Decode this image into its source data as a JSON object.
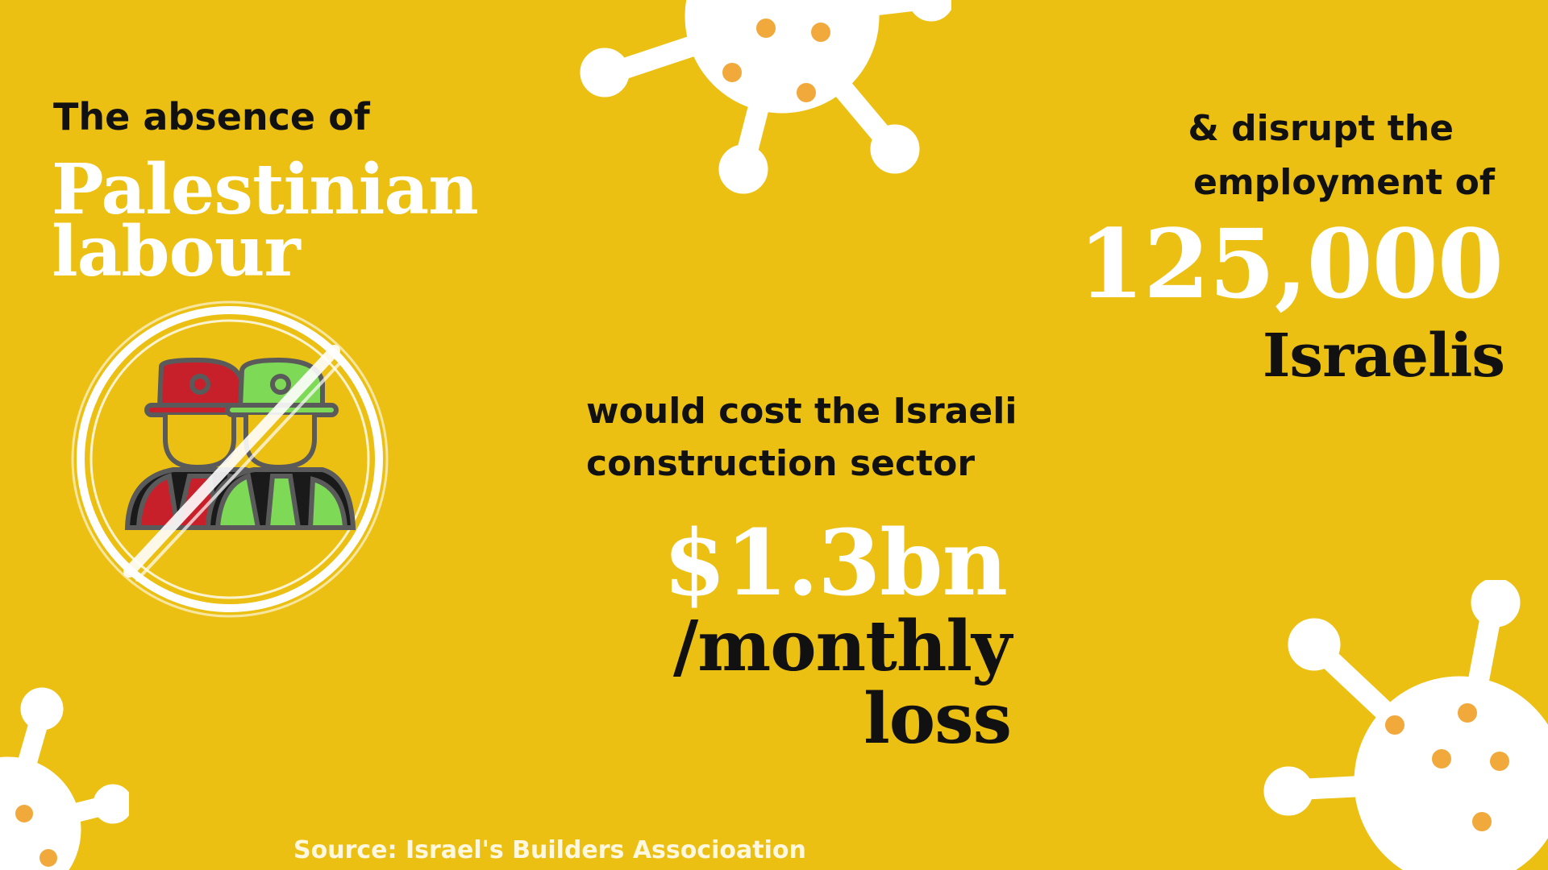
{
  "intro": {
    "lead": "The absence of",
    "title_line1": "Palestinian",
    "title_line2": "labour"
  },
  "employment": {
    "line1": "& disrupt the",
    "line2": "employment of",
    "number": "125,000",
    "label": "Israelis"
  },
  "cost": {
    "line1": "would cost the Israeli",
    "line2": "construction sector",
    "amount": "$1.3bn",
    "per": "/monthly",
    "unit": "loss"
  },
  "source": "Source: Israel's Builders Associoation",
  "colors": {
    "background": "#EBC013",
    "highlight_text": "#FFFFFF",
    "body_text": "#111111",
    "virus_body": "#FFFFFF",
    "virus_spots": "#F2A93B",
    "helmet_left": "#C8202A",
    "helmet_right": "#7ED957",
    "outline": "#5A5A5A"
  },
  "icons": [
    "virus-icon",
    "no-workers-icon"
  ]
}
